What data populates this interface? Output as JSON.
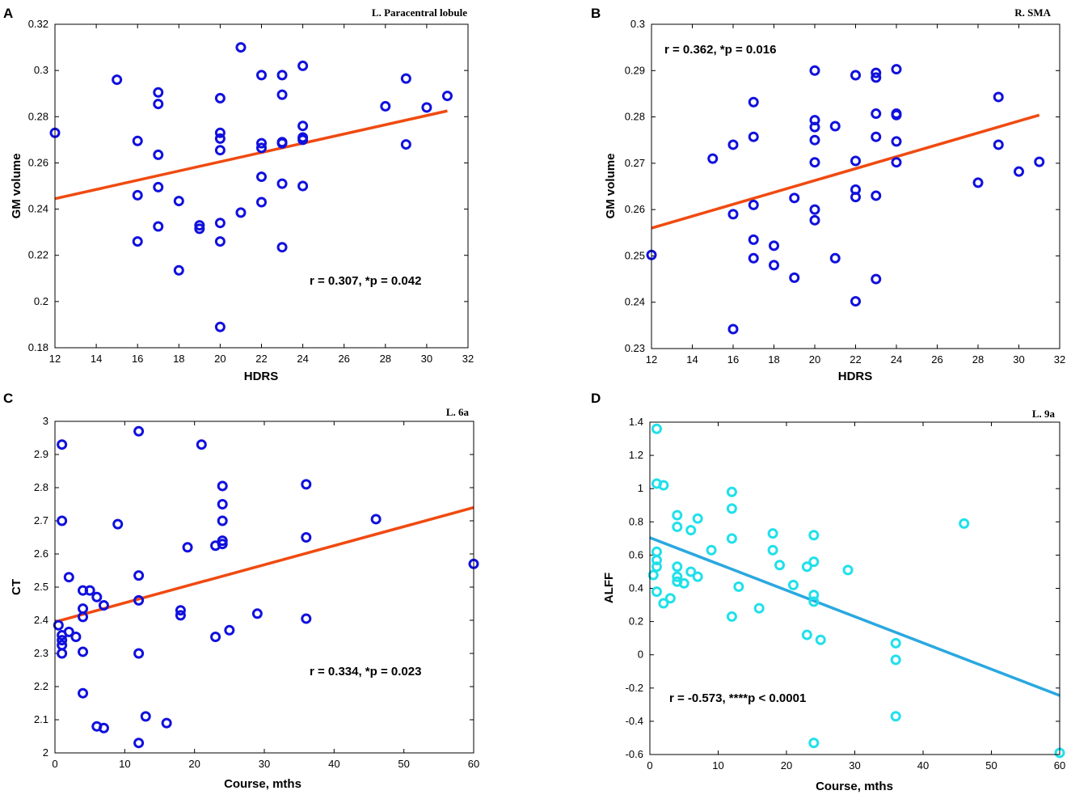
{
  "chart_data": [
    {
      "type": "scatter",
      "panel": "A",
      "title": "L. Paracentral lobule",
      "xlabel": "HDRS",
      "ylabel": "GM volume",
      "xlim": [
        12,
        32
      ],
      "ylim": [
        0.18,
        0.32
      ],
      "xticks": [
        12,
        14,
        16,
        18,
        20,
        22,
        24,
        26,
        28,
        30,
        32
      ],
      "yticks": [
        0.18,
        0.2,
        0.22,
        0.24,
        0.26,
        0.28,
        0.3,
        0.32
      ],
      "ytick_labels": [
        "0.18",
        "0.2",
        "0.22",
        "0.24",
        "0.26",
        "0.28",
        "0.3",
        "0.32"
      ],
      "annotation": "r = 0.307, *p = 0.042",
      "point_color": "#1010dd",
      "line_color": "#f04a10",
      "fit_line": {
        "x": [
          12,
          31
        ],
        "y": [
          0.2445,
          0.2825
        ]
      },
      "points": [
        [
          12,
          0.273
        ],
        [
          15,
          0.296
        ],
        [
          16,
          0.2695
        ],
        [
          16,
          0.246
        ],
        [
          16,
          0.226
        ],
        [
          17,
          0.2905
        ],
        [
          17,
          0.2855
        ],
        [
          17,
          0.2635
        ],
        [
          17,
          0.2495
        ],
        [
          17,
          0.2325
        ],
        [
          18,
          0.2435
        ],
        [
          18,
          0.2135
        ],
        [
          19,
          0.233
        ],
        [
          19,
          0.2315
        ],
        [
          20,
          0.288
        ],
        [
          20,
          0.273
        ],
        [
          20,
          0.2705
        ],
        [
          20,
          0.2655
        ],
        [
          20,
          0.234
        ],
        [
          20,
          0.226
        ],
        [
          20,
          0.189
        ],
        [
          21,
          0.31
        ],
        [
          21,
          0.2385
        ],
        [
          22,
          0.298
        ],
        [
          22,
          0.2685
        ],
        [
          22,
          0.2665
        ],
        [
          22,
          0.254
        ],
        [
          22,
          0.243
        ],
        [
          23,
          0.298
        ],
        [
          23,
          0.2895
        ],
        [
          23,
          0.269
        ],
        [
          23,
          0.2685
        ],
        [
          23,
          0.251
        ],
        [
          23,
          0.2235
        ],
        [
          24,
          0.302
        ],
        [
          24,
          0.276
        ],
        [
          24,
          0.271
        ],
        [
          24,
          0.27
        ],
        [
          24,
          0.25
        ],
        [
          28,
          0.2845
        ],
        [
          29,
          0.2965
        ],
        [
          29,
          0.268
        ],
        [
          30,
          0.284
        ],
        [
          31,
          0.289
        ]
      ]
    },
    {
      "type": "scatter",
      "panel": "B",
      "title": "R. SMA",
      "xlabel": "HDRS",
      "ylabel": "GM volume",
      "xlim": [
        12,
        32
      ],
      "ylim": [
        0.23,
        0.3
      ],
      "xticks": [
        12,
        14,
        16,
        18,
        20,
        22,
        24,
        26,
        28,
        30,
        32
      ],
      "yticks": [
        0.23,
        0.24,
        0.25,
        0.26,
        0.27,
        0.28,
        0.29,
        0.3
      ],
      "ytick_labels": [
        "0.23",
        "0.24",
        "0.25",
        "0.26",
        "0.27",
        "0.28",
        "0.29",
        "0.3"
      ],
      "annotation": "r = 0.362, *p = 0.016",
      "point_color": "#1010dd",
      "line_color": "#f04a10",
      "fit_line": {
        "x": [
          12,
          31
        ],
        "y": [
          0.256,
          0.2804
        ]
      },
      "points": [
        [
          12,
          0.2502
        ],
        [
          15,
          0.271
        ],
        [
          16,
          0.274
        ],
        [
          16,
          0.259
        ],
        [
          16,
          0.2342
        ],
        [
          17,
          0.2832
        ],
        [
          17,
          0.2757
        ],
        [
          17,
          0.261
        ],
        [
          17,
          0.2535
        ],
        [
          17,
          0.2495
        ],
        [
          18,
          0.2522
        ],
        [
          18,
          0.248
        ],
        [
          19,
          0.2625
        ],
        [
          19,
          0.2453
        ],
        [
          20,
          0.29
        ],
        [
          20,
          0.2793
        ],
        [
          20,
          0.2778
        ],
        [
          20,
          0.275
        ],
        [
          20,
          0.2702
        ],
        [
          20,
          0.26
        ],
        [
          20,
          0.2577
        ],
        [
          21,
          0.278
        ],
        [
          21,
          0.2495
        ],
        [
          22,
          0.289
        ],
        [
          22,
          0.2705
        ],
        [
          22,
          0.2643
        ],
        [
          22,
          0.2627
        ],
        [
          22,
          0.2402
        ],
        [
          23,
          0.2895
        ],
        [
          23,
          0.2885
        ],
        [
          23,
          0.2807
        ],
        [
          23,
          0.2757
        ],
        [
          23,
          0.263
        ],
        [
          23,
          0.245
        ],
        [
          24,
          0.2903
        ],
        [
          24,
          0.2807
        ],
        [
          24,
          0.2804
        ],
        [
          24,
          0.2747
        ],
        [
          24,
          0.2702
        ],
        [
          28,
          0.2658
        ],
        [
          29,
          0.2843
        ],
        [
          29,
          0.274
        ],
        [
          30,
          0.2682
        ],
        [
          31,
          0.2703
        ]
      ]
    },
    {
      "type": "scatter",
      "panel": "C",
      "title": "L. 6a",
      "xlabel": "Course, mths",
      "ylabel": "CT",
      "xlim": [
        0,
        60
      ],
      "ylim": [
        2,
        3
      ],
      "xticks": [
        0,
        10,
        20,
        30,
        40,
        50,
        60
      ],
      "yticks": [
        2,
        2.1,
        2.2,
        2.3,
        2.4,
        2.5,
        2.6,
        2.7,
        2.8,
        2.9,
        3
      ],
      "ytick_labels": [
        "2",
        "2.1",
        "2.2",
        "2.3",
        "2.4",
        "2.5",
        "2.6",
        "2.7",
        "2.8",
        "2.9",
        "3"
      ],
      "annotation": "r = 0.334, *p = 0.023",
      "point_color": "#1010dd",
      "line_color": "#f04a10",
      "fit_line": {
        "x": [
          0,
          60
        ],
        "y": [
          2.395,
          2.74
        ]
      },
      "points": [
        [
          0.5,
          2.385
        ],
        [
          1,
          2.93
        ],
        [
          1,
          2.7
        ],
        [
          1,
          2.355
        ],
        [
          1,
          2.34
        ],
        [
          1,
          2.325
        ],
        [
          1,
          2.3
        ],
        [
          2,
          2.53
        ],
        [
          2,
          2.365
        ],
        [
          3,
          2.35
        ],
        [
          4,
          2.49
        ],
        [
          4,
          2.435
        ],
        [
          4,
          2.41
        ],
        [
          4,
          2.305
        ],
        [
          4,
          2.18
        ],
        [
          5,
          2.49
        ],
        [
          6,
          2.47
        ],
        [
          6,
          2.08
        ],
        [
          7,
          2.445
        ],
        [
          7,
          2.075
        ],
        [
          9,
          2.69
        ],
        [
          12,
          2.97
        ],
        [
          12,
          2.535
        ],
        [
          12,
          2.46
        ],
        [
          12,
          2.3
        ],
        [
          12,
          2.03
        ],
        [
          13,
          2.11
        ],
        [
          16,
          2.09
        ],
        [
          18,
          2.43
        ],
        [
          18,
          2.415
        ],
        [
          19,
          2.62
        ],
        [
          21,
          2.93
        ],
        [
          23,
          2.625
        ],
        [
          23,
          2.35
        ],
        [
          24,
          2.805
        ],
        [
          24,
          2.75
        ],
        [
          24,
          2.7
        ],
        [
          24,
          2.64
        ],
        [
          24,
          2.63
        ],
        [
          25,
          2.37
        ],
        [
          29,
          2.42
        ],
        [
          36,
          2.81
        ],
        [
          36,
          2.65
        ],
        [
          36,
          2.405
        ],
        [
          46,
          2.705
        ],
        [
          60,
          2.57
        ]
      ]
    },
    {
      "type": "scatter",
      "panel": "D",
      "title": "L. 9a",
      "xlabel": "Course, mths",
      "ylabel": "ALFF",
      "xlim": [
        0,
        60
      ],
      "ylim": [
        -0.6,
        1.4
      ],
      "xticks": [
        0,
        10,
        20,
        30,
        40,
        50,
        60
      ],
      "yticks": [
        -0.6,
        -0.4,
        -0.2,
        0,
        0.2,
        0.4,
        0.6,
        0.8,
        1,
        1.2,
        1.4
      ],
      "ytick_labels": [
        "-0.6",
        "-0.4",
        "-0.2",
        "0",
        "0.2",
        "0.4",
        "0.6",
        "0.8",
        "1",
        "1.2",
        "1.4"
      ],
      "annotation": "r = -0.573, ****p < 0.0001",
      "point_color": "#20e0ea",
      "line_color": "#2aa8e0",
      "fit_line": {
        "x": [
          0,
          60
        ],
        "y": [
          0.705,
          -0.245
        ]
      },
      "points": [
        [
          0.5,
          0.48
        ],
        [
          1,
          1.36
        ],
        [
          1,
          1.03
        ],
        [
          1,
          0.62
        ],
        [
          1,
          0.57
        ],
        [
          1,
          0.53
        ],
        [
          1,
          0.38
        ],
        [
          2,
          1.02
        ],
        [
          2,
          0.31
        ],
        [
          3,
          0.34
        ],
        [
          4,
          0.84
        ],
        [
          4,
          0.77
        ],
        [
          4,
          0.53
        ],
        [
          4,
          0.47
        ],
        [
          4,
          0.44
        ],
        [
          5,
          0.43
        ],
        [
          6,
          0.75
        ],
        [
          6,
          0.5
        ],
        [
          7,
          0.82
        ],
        [
          7,
          0.47
        ],
        [
          9,
          0.63
        ],
        [
          12,
          0.98
        ],
        [
          12,
          0.88
        ],
        [
          12,
          0.7
        ],
        [
          12,
          0.23
        ],
        [
          13,
          0.41
        ],
        [
          16,
          0.28
        ],
        [
          18,
          0.73
        ],
        [
          18,
          0.63
        ],
        [
          19,
          0.54
        ],
        [
          21,
          0.42
        ],
        [
          23,
          0.53
        ],
        [
          23,
          0.12
        ],
        [
          24,
          0.72
        ],
        [
          24,
          0.56
        ],
        [
          24,
          0.36
        ],
        [
          24,
          0.32
        ],
        [
          24,
          -0.53
        ],
        [
          25,
          0.09
        ],
        [
          29,
          0.51
        ],
        [
          36,
          0.07
        ],
        [
          36,
          -0.03
        ],
        [
          36,
          -0.37
        ],
        [
          46,
          0.79
        ],
        [
          60,
          -0.59
        ]
      ]
    }
  ]
}
